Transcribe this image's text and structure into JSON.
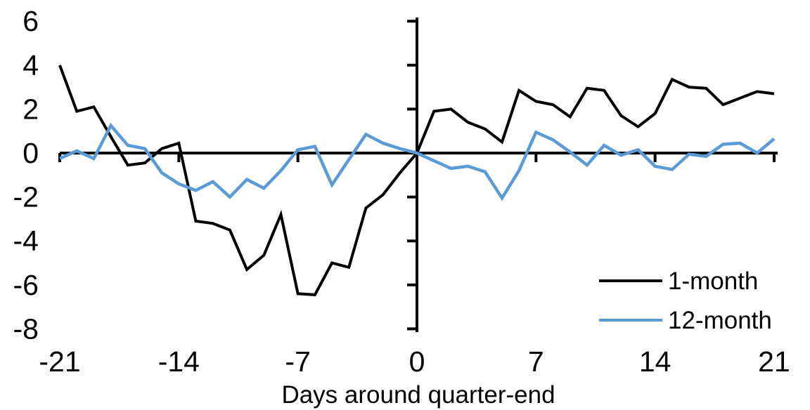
{
  "chart_data": {
    "type": "line",
    "title": "",
    "xlabel": "Days around quarter-end",
    "ylabel": "",
    "grid": false,
    "legend_position": "lower-right",
    "xlim": [
      -21,
      21
    ],
    "ylim": [
      -8,
      6
    ],
    "x_ticks": [
      -21,
      -14,
      -7,
      0,
      7,
      14,
      21
    ],
    "y_ticks": [
      6,
      4,
      2,
      0,
      -2,
      -4,
      -6,
      -8
    ],
    "x": [
      -21,
      -20,
      -19,
      -18,
      -17,
      -16,
      -15,
      -14,
      -13,
      -12,
      -11,
      -10,
      -9,
      -8,
      -7,
      -6,
      -5,
      -4,
      -3,
      -2,
      -1,
      0,
      1,
      2,
      3,
      4,
      5,
      6,
      7,
      8,
      9,
      10,
      11,
      12,
      13,
      14,
      15,
      16,
      17,
      18,
      19,
      20,
      21
    ],
    "series": [
      {
        "name": "1-month",
        "color": "#000000",
        "values": [
          4.0,
          1.9,
          2.1,
          0.75,
          -0.55,
          -0.45,
          0.2,
          0.45,
          -3.1,
          -3.2,
          -3.5,
          -5.3,
          -4.65,
          -2.8,
          -6.4,
          -6.45,
          -5.0,
          -5.2,
          -2.5,
          -1.9,
          -0.9,
          0.0,
          1.9,
          2.0,
          1.4,
          1.1,
          0.5,
          2.85,
          2.35,
          2.2,
          1.65,
          2.95,
          2.85,
          1.7,
          1.2,
          1.8,
          3.35,
          3.0,
          2.95,
          2.2,
          2.5,
          2.8,
          2.7
        ]
      },
      {
        "name": "12-month",
        "color": "#5B9BD5",
        "values": [
          -0.25,
          0.1,
          -0.25,
          1.25,
          0.35,
          0.2,
          -0.9,
          -1.4,
          -1.7,
          -1.3,
          -2.0,
          -1.2,
          -1.6,
          -0.8,
          0.15,
          0.3,
          -1.45,
          -0.3,
          0.85,
          0.45,
          0.2,
          0.0,
          -0.35,
          -0.7,
          -0.6,
          -0.85,
          -2.05,
          -0.8,
          0.95,
          0.6,
          0.05,
          -0.55,
          0.35,
          -0.1,
          0.15,
          -0.6,
          -0.75,
          -0.05,
          -0.15,
          0.4,
          0.45,
          0.0,
          0.65
        ]
      }
    ]
  }
}
